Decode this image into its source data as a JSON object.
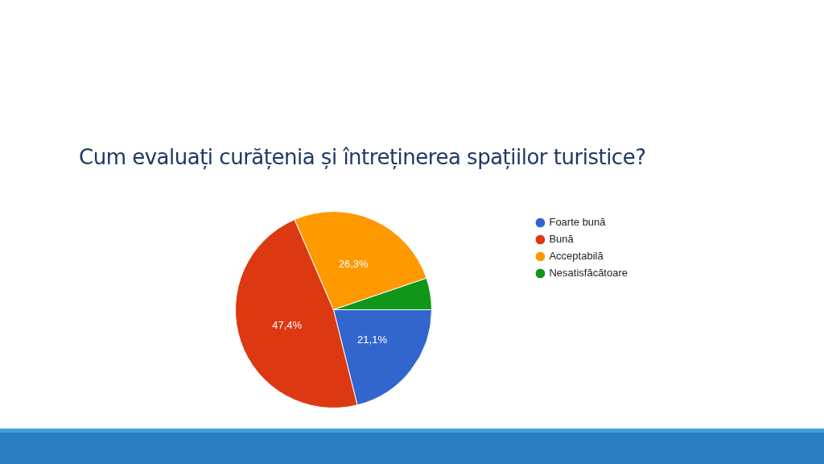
{
  "chart_data": {
    "type": "pie",
    "title": "Cum evaluați curățenia și întreținerea spațiilor turistice?",
    "categories": [
      "Foarte bună",
      "Bună",
      "Acceptabilă",
      "Nesatisfăcătoare"
    ],
    "values": [
      21.1,
      47.4,
      26.3,
      5.2
    ],
    "colors": [
      "#3366cc",
      "#dc3912",
      "#ff9900",
      "#109618"
    ],
    "value_labels": [
      "21,1%",
      "47,4%",
      "26,3%",
      null
    ],
    "legend": "right"
  }
}
